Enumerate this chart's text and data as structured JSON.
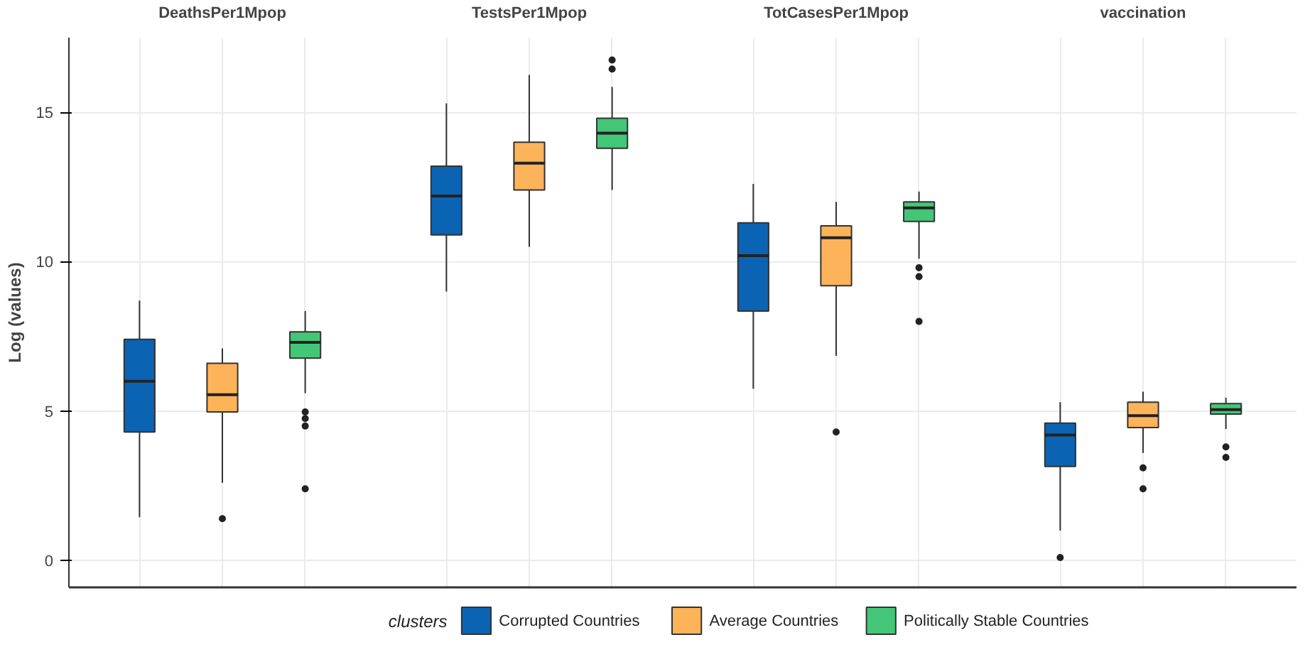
{
  "chart_data": {
    "type": "box",
    "ylabel": "Log (values)",
    "categories": [
      "DeathsPer1Mpop",
      "TestsPer1Mpop",
      "TotCasesPer1Mpop",
      "vaccination"
    ],
    "ylim": [
      -0.9,
      17.5
    ],
    "yticks": [
      0,
      5,
      10,
      15
    ],
    "grid": true,
    "legend": "bottom",
    "legend_title": "clusters",
    "series": [
      {
        "name": "Corrupted Countries",
        "color": "#0b63b3",
        "boxes": [
          {
            "low": 1.45,
            "q1": 4.3,
            "median": 6.0,
            "q3": 7.4,
            "high": 8.7
          },
          {
            "low": 9.0,
            "q1": 10.9,
            "median": 12.2,
            "q3": 13.2,
            "high": 15.3
          },
          {
            "low": 5.75,
            "q1": 8.35,
            "median": 10.2,
            "q3": 11.3,
            "high": 12.6
          },
          {
            "low": 1.0,
            "q1": 3.15,
            "median": 4.2,
            "q3": 4.6,
            "high": 5.3,
            "outliers": [
              0.1
            ]
          }
        ]
      },
      {
        "name": "Average Countries",
        "color": "#fdb35a",
        "boxes": [
          {
            "low": 2.6,
            "q1": 4.97,
            "median": 5.55,
            "q3": 6.6,
            "high": 7.1,
            "outliers": [
              1.4
            ]
          },
          {
            "low": 10.5,
            "q1": 12.4,
            "median": 13.3,
            "q3": 14.0,
            "high": 16.25
          },
          {
            "low": 6.85,
            "q1": 9.2,
            "median": 10.8,
            "q3": 11.2,
            "high": 12.0,
            "outliers": [
              4.3
            ]
          },
          {
            "low": 3.6,
            "q1": 4.45,
            "median": 4.85,
            "q3": 5.3,
            "high": 5.65,
            "outliers": [
              3.1,
              2.4
            ]
          }
        ]
      },
      {
        "name": "Politically Stable Countries",
        "color": "#44c677",
        "boxes": [
          {
            "low": 5.6,
            "q1": 6.77,
            "median": 7.3,
            "q3": 7.65,
            "high": 8.35,
            "outliers": [
              4.97,
              4.75,
              4.5,
              2.4
            ]
          },
          {
            "low": 12.4,
            "q1": 13.8,
            "median": 14.3,
            "q3": 14.8,
            "high": 15.85,
            "outliers": [
              16.75,
              16.45
            ]
          },
          {
            "low": 10.1,
            "q1": 11.35,
            "median": 11.8,
            "q3": 12.0,
            "high": 12.35,
            "outliers": [
              9.8,
              9.5,
              8.0
            ]
          },
          {
            "low": 4.4,
            "q1": 4.9,
            "median": 5.05,
            "q3": 5.25,
            "high": 5.45,
            "outliers": [
              3.8,
              3.45
            ]
          }
        ]
      }
    ]
  }
}
